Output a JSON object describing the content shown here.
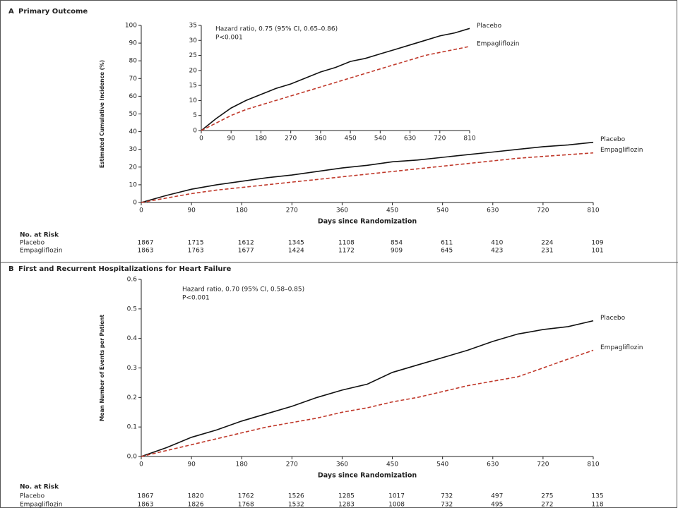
{
  "chart_data": [
    {
      "type": "line",
      "panel": "A",
      "title": "Primary Outcome",
      "ylabel": "Estimated Cumulative Incidence (%)",
      "xlabel": "Days since Randomization",
      "x": [
        0,
        45,
        90,
        135,
        180,
        225,
        270,
        315,
        360,
        405,
        450,
        495,
        540,
        585,
        630,
        675,
        720,
        765,
        810
      ],
      "series": [
        {
          "name": "Placebo",
          "color": "#111111",
          "line_style": "solid",
          "values": [
            0,
            4,
            7.5,
            10,
            12,
            14,
            15.5,
            17.5,
            19.5,
            21,
            23,
            24,
            25.5,
            27,
            28.5,
            30,
            31.5,
            32.5,
            34
          ]
        },
        {
          "name": "Empagliflozin",
          "color": "#c0392b",
          "line_style": "dashed",
          "values": [
            0,
            2.5,
            5,
            7,
            8.5,
            10,
            11.5,
            13,
            14.5,
            16,
            17.5,
            19,
            20.5,
            22,
            23.5,
            25,
            26,
            27,
            28
          ]
        }
      ],
      "xlim": [
        0,
        810
      ],
      "xticks": [
        0,
        90,
        180,
        270,
        360,
        450,
        540,
        630,
        720,
        810
      ],
      "ylim": [
        0,
        100
      ],
      "yticks": [
        0,
        10,
        20,
        30,
        40,
        50,
        60,
        70,
        80,
        90,
        100
      ],
      "risk_table": {
        "title": "No. at Risk",
        "rows": [
          {
            "name": "Placebo",
            "values": [
              1867,
              1715,
              1612,
              1345,
              1108,
              854,
              611,
              410,
              224,
              109
            ]
          },
          {
            "name": "Empagliflozin",
            "values": [
              1863,
              1763,
              1677,
              1424,
              1172,
              909,
              645,
              423,
              231,
              101
            ]
          }
        ]
      }
    },
    {
      "type": "line",
      "annotation": [
        "Hazard ratio, 0.75 (95% CI, 0.65–0.86)",
        "P<0.001"
      ],
      "x": [
        0,
        45,
        90,
        135,
        180,
        225,
        270,
        315,
        360,
        405,
        450,
        495,
        540,
        585,
        630,
        675,
        720,
        765,
        810
      ],
      "series": [
        {
          "name": "Placebo",
          "color": "#111111",
          "line_style": "solid",
          "values": [
            0,
            4,
            7.5,
            10,
            12,
            14,
            15.5,
            17.5,
            19.5,
            21,
            23,
            24,
            25.5,
            27,
            28.5,
            30,
            31.5,
            32.5,
            34
          ]
        },
        {
          "name": "Empagliflozin",
          "color": "#c0392b",
          "line_style": "dashed",
          "values": [
            0,
            2.5,
            5,
            7,
            8.5,
            10,
            11.5,
            13,
            14.5,
            16,
            17.5,
            19,
            20.5,
            22,
            23.5,
            25,
            26,
            27,
            28
          ]
        }
      ],
      "xlim": [
        0,
        810
      ],
      "xticks": [
        0,
        90,
        180,
        270,
        360,
        450,
        540,
        630,
        720,
        810
      ],
      "ylim": [
        0,
        35
      ],
      "yticks": [
        0,
        5,
        10,
        15,
        20,
        25,
        30,
        35
      ]
    },
    {
      "type": "line",
      "panel": "B",
      "title": "First and Recurrent Hospitalizations for Heart Failure",
      "ylabel": "Mean Number of Events per Patient",
      "xlabel": "Days since Randomization",
      "annotation": [
        "Hazard ratio, 0.70 (95% CI, 0.58–0.85)",
        "P<0.001"
      ],
      "x": [
        0,
        45,
        90,
        135,
        180,
        225,
        270,
        315,
        360,
        405,
        450,
        495,
        540,
        585,
        630,
        675,
        720,
        765,
        810
      ],
      "series": [
        {
          "name": "Placebo",
          "color": "#111111",
          "line_style": "solid",
          "values": [
            0,
            0.03,
            0.065,
            0.09,
            0.12,
            0.145,
            0.17,
            0.2,
            0.225,
            0.245,
            0.285,
            0.31,
            0.335,
            0.36,
            0.39,
            0.415,
            0.43,
            0.44,
            0.46
          ]
        },
        {
          "name": "Empagliflozin",
          "color": "#c0392b",
          "line_style": "dashed",
          "values": [
            0,
            0.02,
            0.04,
            0.06,
            0.08,
            0.1,
            0.115,
            0.13,
            0.15,
            0.165,
            0.185,
            0.2,
            0.22,
            0.24,
            0.255,
            0.27,
            0.3,
            0.33,
            0.36
          ]
        }
      ],
      "xlim": [
        0,
        810
      ],
      "xticks": [
        0,
        90,
        180,
        270,
        360,
        450,
        540,
        630,
        720,
        810
      ],
      "ylim": [
        0,
        0.6
      ],
      "yticks": [
        {
          "value": 0,
          "label": "0.0"
        },
        0.1,
        0.2,
        0.3,
        0.4,
        0.5,
        0.6
      ],
      "risk_table": {
        "title": "No. at Risk",
        "rows": [
          {
            "name": "Placebo",
            "values": [
              1867,
              1820,
              1762,
              1526,
              1285,
              1017,
              732,
              497,
              275,
              135
            ]
          },
          {
            "name": "Empagliflozin",
            "values": [
              1863,
              1826,
              1768,
              1532,
              1283,
              1008,
              732,
              495,
              272,
              118
            ]
          }
        ]
      }
    }
  ]
}
